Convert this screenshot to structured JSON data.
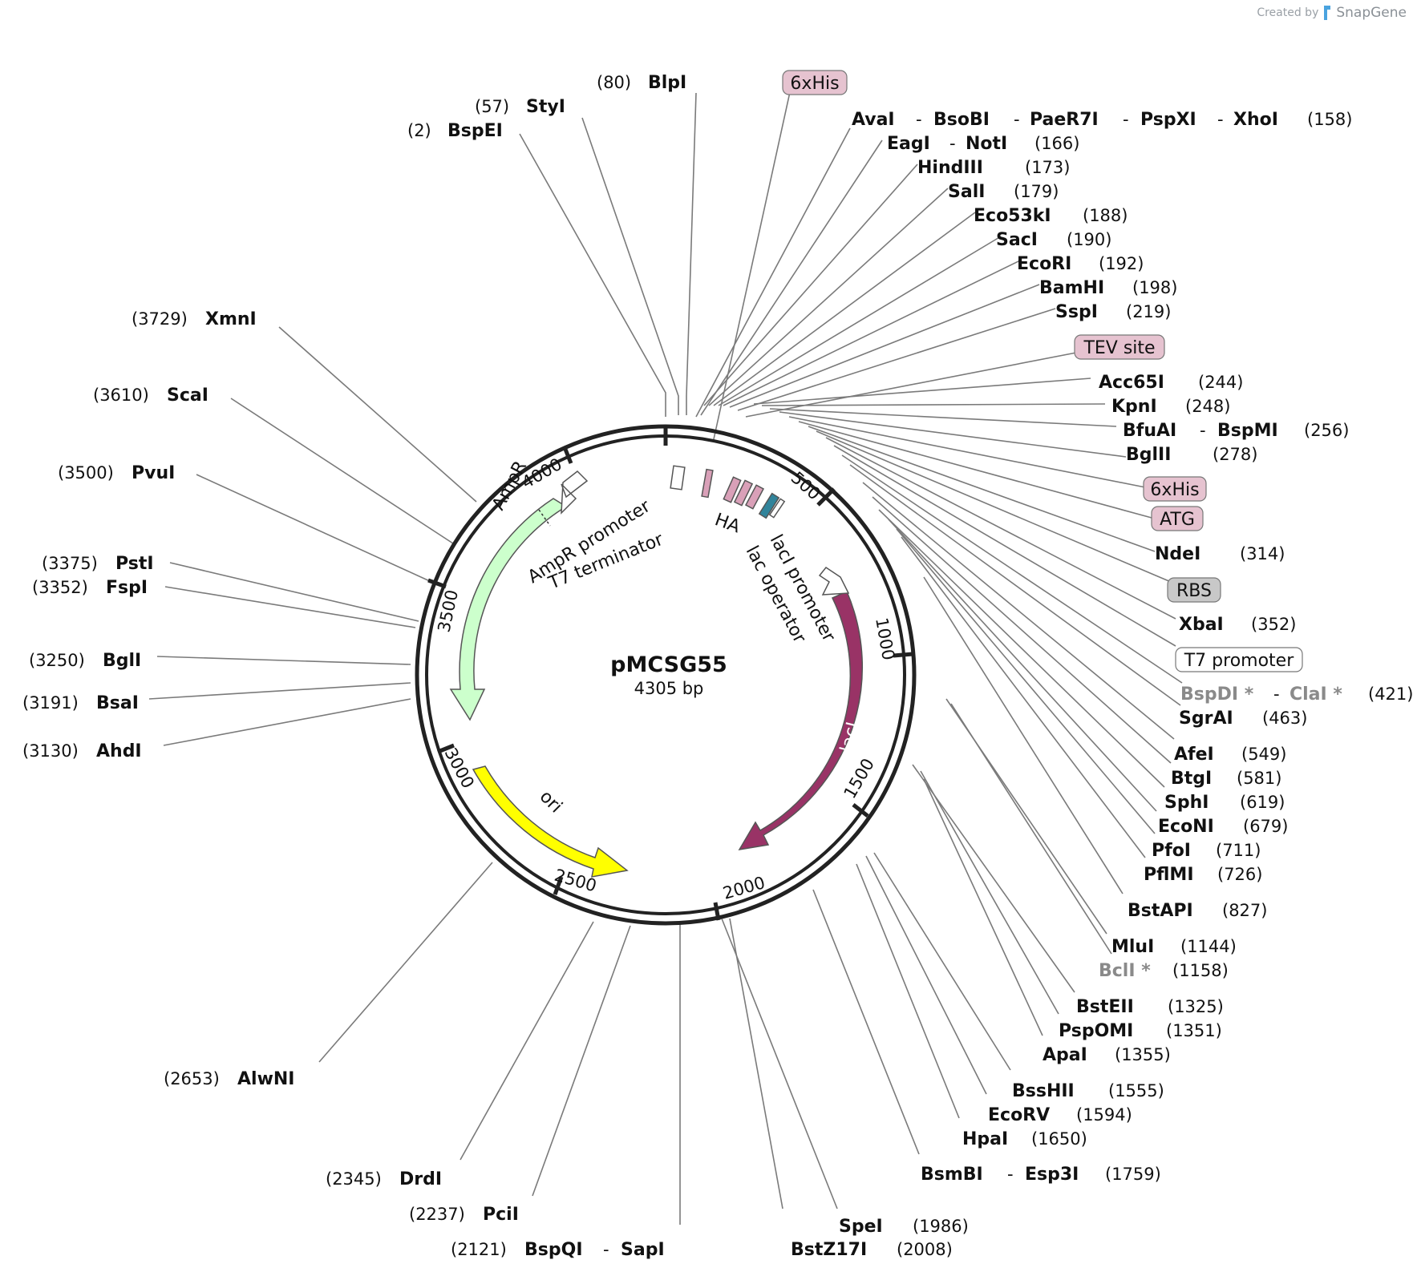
{
  "credit": {
    "prefix": "Created by",
    "brand": "SnapGene"
  },
  "plasmid": {
    "name": "pMCSG55",
    "size_label": "4305 bp"
  },
  "ticks": [
    "500",
    "1000",
    "1500",
    "2000",
    "2500",
    "3000",
    "3500",
    "4000"
  ],
  "features": {
    "ampr": "AmpR",
    "ori": "ori",
    "laci": "lacI",
    "ampr_promoter": "AmpR promoter",
    "t7_terminator": "T7 terminator",
    "ha": "HA",
    "laci_promoter": "lacI promoter",
    "lac_operator": "lac operator"
  },
  "tags": {
    "his_top": "6xHis",
    "tev": "TEV site",
    "his_right": "6xHis",
    "atg": "ATG",
    "rbs": "RBS",
    "t7_promoter": "T7 promoter"
  },
  "enzymes": {
    "bspei": {
      "pos": "(2)",
      "name": "BspEI"
    },
    "styi": {
      "pos": "(57)",
      "name": "StyI"
    },
    "blpi": {
      "pos": "(80)",
      "name": "BlpI"
    },
    "xmni": {
      "pos": "(3729)",
      "name": "XmnI"
    },
    "scai": {
      "pos": "(3610)",
      "name": "ScaI"
    },
    "pvui": {
      "pos": "(3500)",
      "name": "PvuI"
    },
    "psti": {
      "pos": "(3375)",
      "name": "PstI"
    },
    "fspi": {
      "pos": "(3352)",
      "name": "FspI"
    },
    "bgli": {
      "pos": "(3250)",
      "name": "BglI"
    },
    "bsai": {
      "pos": "(3191)",
      "name": "BsaI"
    },
    "ahdi": {
      "pos": "(3130)",
      "name": "AhdI"
    },
    "alwni": {
      "pos": "(2653)",
      "name": "AlwNI"
    },
    "drdi": {
      "pos": "(2345)",
      "name": "DrdI"
    },
    "pcii": {
      "pos": "(2237)",
      "name": "PciI"
    },
    "bspqi_sapi": {
      "names": [
        "BspQI",
        "SapI"
      ],
      "pos": "(2121)"
    },
    "spei": {
      "name": "SpeI",
      "pos": "(1986)"
    },
    "bstz17i": {
      "name": "BstZ17I",
      "pos": "(2008)"
    },
    "bsmbi_esp3i": {
      "names": [
        "BsmBI",
        "Esp3I"
      ],
      "pos": "(1759)"
    },
    "hpai": {
      "name": "HpaI",
      "pos": "(1650)"
    },
    "ecorv": {
      "name": "EcoRV",
      "pos": "(1594)"
    },
    "bsshii": {
      "name": "BssHII",
      "pos": "(1555)"
    },
    "apai": {
      "name": "ApaI",
      "pos": "(1355)"
    },
    "pspomi": {
      "name": "PspOMI",
      "pos": "(1351)"
    },
    "bsteii": {
      "name": "BstEII",
      "pos": "(1325)"
    },
    "bcli": {
      "name": "BclI *",
      "pos": "(1158)"
    },
    "mlui": {
      "name": "MluI",
      "pos": "(1144)"
    },
    "bstapi": {
      "name": "BstAPI",
      "pos": "(827)"
    },
    "pflmi": {
      "name": "PflMI",
      "pos": "(726)"
    },
    "pfoi": {
      "name": "PfoI",
      "pos": "(711)"
    },
    "econi": {
      "name": "EcoNI",
      "pos": "(679)"
    },
    "sphi": {
      "name": "SphI",
      "pos": "(619)"
    },
    "btgi": {
      "name": "BtgI",
      "pos": "(581)"
    },
    "afei": {
      "name": "AfeI",
      "pos": "(549)"
    },
    "sgrai": {
      "name": "SgrAI",
      "pos": "(463)"
    },
    "bspdi_clai": {
      "names": [
        "BspDI *",
        "ClaI *"
      ],
      "pos": "(421)"
    },
    "xbai": {
      "name": "XbaI",
      "pos": "(352)"
    },
    "ndei": {
      "name": "NdeI",
      "pos": "(314)"
    },
    "bglii": {
      "name": "BglII",
      "pos": "(278)"
    },
    "bfuai_bspmi": {
      "names": [
        "BfuAI",
        "BspMI"
      ],
      "pos": "(256)"
    },
    "kpni": {
      "name": "KpnI",
      "pos": "(248)"
    },
    "acc65i": {
      "name": "Acc65I",
      "pos": "(244)"
    },
    "sspi": {
      "name": "SspI",
      "pos": "(219)"
    },
    "bamhi": {
      "name": "BamHI",
      "pos": "(198)"
    },
    "ecori": {
      "name": "EcoRI",
      "pos": "(192)"
    },
    "saci": {
      "name": "SacI",
      "pos": "(190)"
    },
    "eco53ki": {
      "name": "Eco53kI",
      "pos": "(188)"
    },
    "sali": {
      "name": "SalI",
      "pos": "(179)"
    },
    "hindiii": {
      "name": "HindIII",
      "pos": "(173)"
    },
    "eagi_noti": {
      "names": [
        "EagI",
        "NotI"
      ],
      "pos": "(166)"
    },
    "xhoi_group": {
      "names": [
        "AvaI",
        "BsoBI",
        "PaeR7I",
        "PspXI",
        "XhoI"
      ],
      "pos": "(158)"
    }
  },
  "colors": {
    "ampr": "#ccffcc",
    "ori": "#ffff00",
    "laci": "#993366",
    "tag_pink": "#e6c3d0",
    "rbs_grey": "#c8c8c8",
    "teal": "#31849b",
    "ring": "#222222"
  }
}
